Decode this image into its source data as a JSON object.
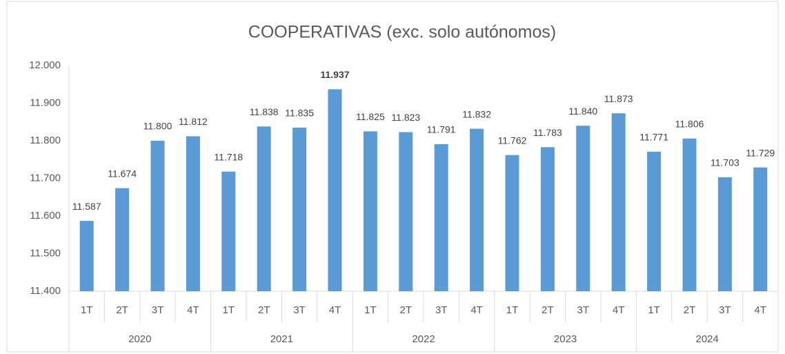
{
  "chart_data": {
    "type": "bar",
    "title": "COOPERATIVAS (exc. solo autónomos)",
    "categories": [
      "1T",
      "2T",
      "3T",
      "4T",
      "1T",
      "2T",
      "3T",
      "4T",
      "1T",
      "2T",
      "3T",
      "4T",
      "1T",
      "2T",
      "3T",
      "4T",
      "1T",
      "2T",
      "3T",
      "4T"
    ],
    "groups": [
      "2020",
      "2021",
      "2022",
      "2023",
      "2024"
    ],
    "values": [
      11587,
      11674,
      11800,
      11812,
      11718,
      11838,
      11835,
      11937,
      11825,
      11823,
      11791,
      11832,
      11762,
      11783,
      11840,
      11873,
      11771,
      11806,
      11703,
      11729
    ],
    "value_labels": [
      "11.587",
      "11.674",
      "11.800",
      "11.812",
      "11.718",
      "11.838",
      "11.835",
      "11.937",
      "11.825",
      "11.823",
      "11.791",
      "11.832",
      "11.762",
      "11.783",
      "11.840",
      "11.873",
      "11.771",
      "11.806",
      "11.703",
      "11.729"
    ],
    "color": "#5b9bd5",
    "ylim": [
      11400,
      12000
    ],
    "yticks": [
      {
        "value": 11400,
        "label": "11.400"
      },
      {
        "value": 11500,
        "label": "11.500"
      },
      {
        "value": 11600,
        "label": "11.600"
      },
      {
        "value": 11700,
        "label": "11.700"
      },
      {
        "value": 11800,
        "label": "11.800"
      },
      {
        "value": 11900,
        "label": "11.900"
      },
      {
        "value": 12000,
        "label": "12.000"
      }
    ],
    "grid": false
  }
}
